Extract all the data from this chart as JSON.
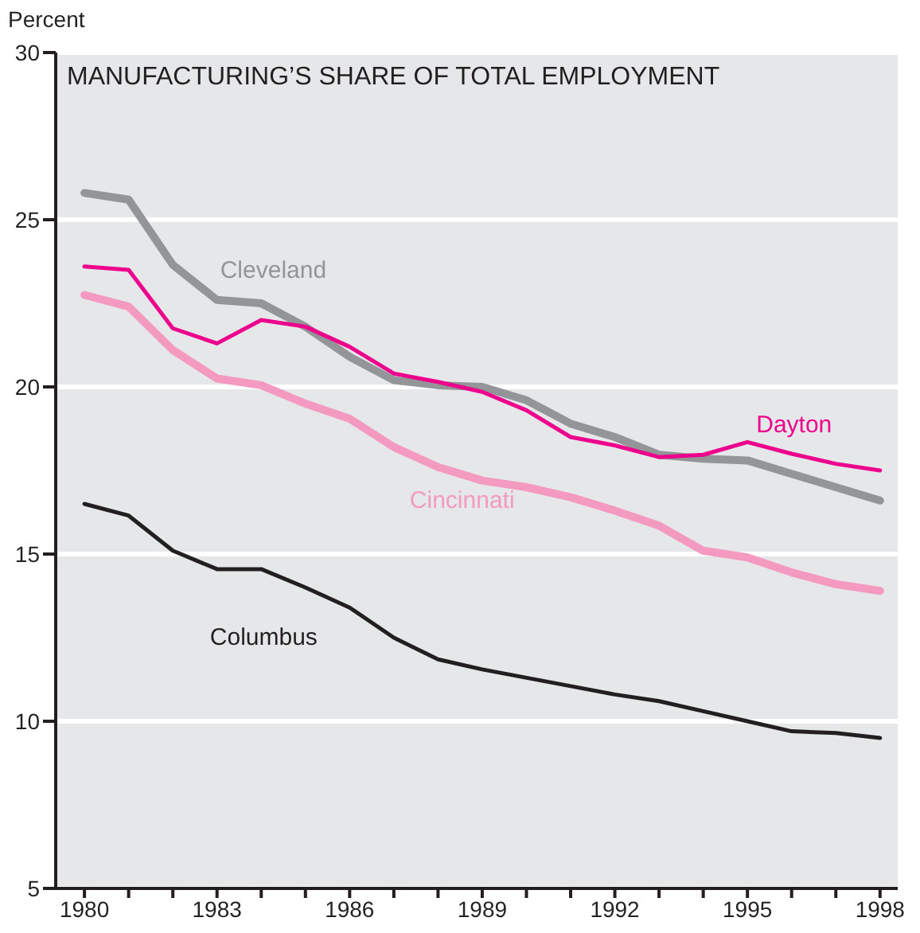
{
  "chart_data": {
    "type": "line",
    "title": "MANUFACTURING’S SHARE OF TOTAL EMPLOYMENT",
    "ylabel": "Percent",
    "x": [
      1980,
      1981,
      1982,
      1983,
      1984,
      1985,
      1986,
      1987,
      1988,
      1989,
      1990,
      1991,
      1992,
      1993,
      1994,
      1995,
      1996,
      1997,
      1998
    ],
    "xlim": [
      1979.35,
      1998.4
    ],
    "xticks": [
      1980,
      {
        "value": 1981,
        "label": null
      },
      {
        "value": 1982,
        "label": null
      },
      1983,
      {
        "value": 1984,
        "label": null
      },
      {
        "value": 1985,
        "label": null
      },
      1986,
      {
        "value": 1987,
        "label": null
      },
      {
        "value": 1988,
        "label": null
      },
      1989,
      {
        "value": 1990,
        "label": null
      },
      {
        "value": 1991,
        "label": null
      },
      1992,
      {
        "value": 1993,
        "label": null
      },
      {
        "value": 1994,
        "label": null
      },
      1995,
      {
        "value": 1996,
        "label": null
      },
      {
        "value": 1997,
        "label": null
      },
      1998
    ],
    "ylim": [
      5,
      30
    ],
    "yticks": [
      5,
      10,
      15,
      20,
      25,
      30
    ],
    "grid": "y",
    "series": [
      {
        "name": "Cleveland",
        "color": "#939598",
        "values": [
          25.8,
          25.6,
          23.65,
          22.6,
          22.5,
          21.8,
          20.9,
          20.2,
          20.05,
          20.0,
          19.6,
          18.9,
          18.5,
          17.97,
          17.85,
          17.8,
          17.4,
          17.0,
          16.6
        ]
      },
      {
        "name": "Dayton",
        "color": "#ec008c",
        "values": [
          23.6,
          23.5,
          21.75,
          21.3,
          22.0,
          21.8,
          21.2,
          20.4,
          20.15,
          19.85,
          19.3,
          18.5,
          18.25,
          17.9,
          17.97,
          18.35,
          18.0,
          17.7,
          17.5
        ]
      },
      {
        "name": "Cincinnati",
        "color": "#f49ac1",
        "values": [
          22.75,
          22.4,
          21.1,
          20.25,
          20.05,
          19.5,
          19.05,
          18.2,
          17.6,
          17.2,
          17.0,
          16.7,
          16.3,
          15.85,
          15.1,
          14.9,
          14.45,
          14.1,
          13.9
        ]
      },
      {
        "name": "Columbus",
        "color": "#231f20",
        "values": [
          16.5,
          16.15,
          15.1,
          14.55,
          14.55,
          14.0,
          13.4,
          12.5,
          11.85,
          11.55,
          11.3,
          11.05,
          10.8,
          10.6,
          10.3,
          10.0,
          9.7,
          9.65,
          9.5
        ]
      }
    ]
  }
}
